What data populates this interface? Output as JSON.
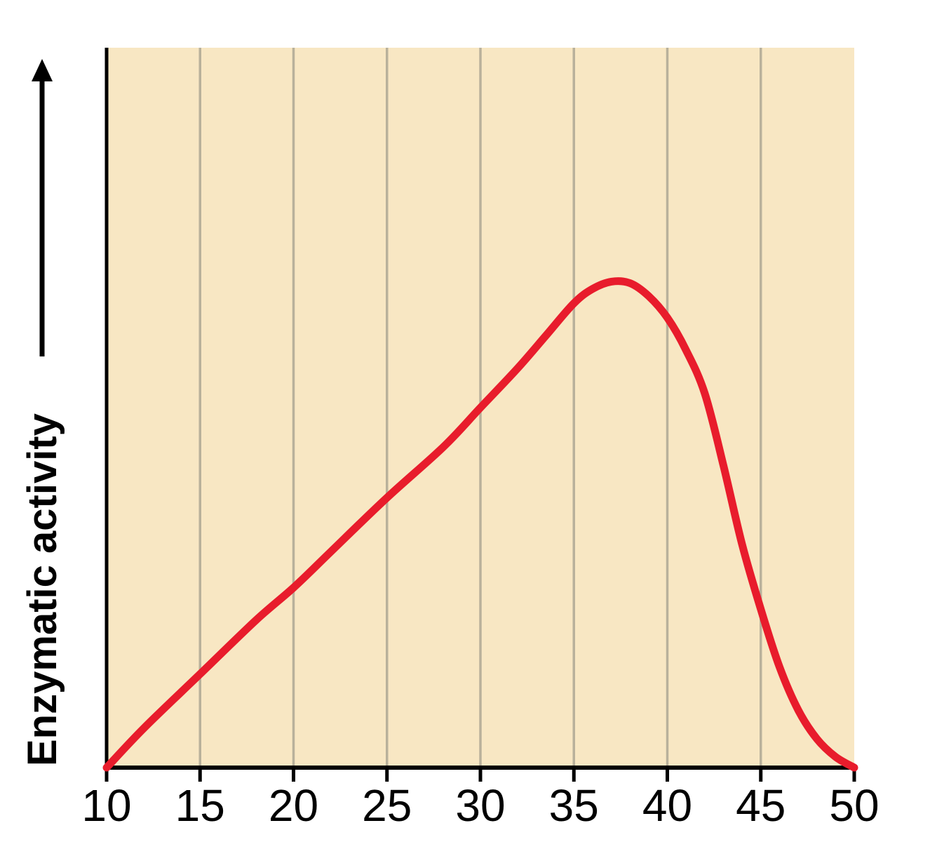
{
  "chart_data": {
    "type": "line",
    "title": "",
    "xlabel": "",
    "ylabel": "Enzymatic activity",
    "x_ticks": [
      10,
      15,
      20,
      25,
      30,
      35,
      40,
      45,
      50
    ],
    "xlim": [
      10,
      50
    ],
    "ylim": [
      0,
      100
    ],
    "grid": "vertical gridlines at each interior x tick",
    "legend": "none",
    "plot_bg": "#f8e7c3",
    "gridline_color": "#b9b19b",
    "axis_color": "#000000",
    "series": [
      {
        "name": "Enzymatic activity",
        "color": "#e81c2c",
        "points": [
          [
            10,
            0
          ],
          [
            12,
            5.5
          ],
          [
            15,
            13
          ],
          [
            18,
            20.5
          ],
          [
            20,
            25
          ],
          [
            22,
            30
          ],
          [
            25,
            37.5
          ],
          [
            28,
            44.5
          ],
          [
            30,
            50
          ],
          [
            32,
            55.5
          ],
          [
            33.5,
            60
          ],
          [
            35,
            64.5
          ],
          [
            36,
            66.5
          ],
          [
            37,
            67.5
          ],
          [
            38,
            67.3
          ],
          [
            39,
            65.5
          ],
          [
            40,
            62.5
          ],
          [
            41,
            58
          ],
          [
            42,
            52
          ],
          [
            43,
            42
          ],
          [
            44,
            31
          ],
          [
            45,
            22
          ],
          [
            46,
            14
          ],
          [
            47,
            8
          ],
          [
            48,
            4
          ],
          [
            49,
            1.5
          ],
          [
            50,
            0
          ]
        ]
      }
    ]
  }
}
